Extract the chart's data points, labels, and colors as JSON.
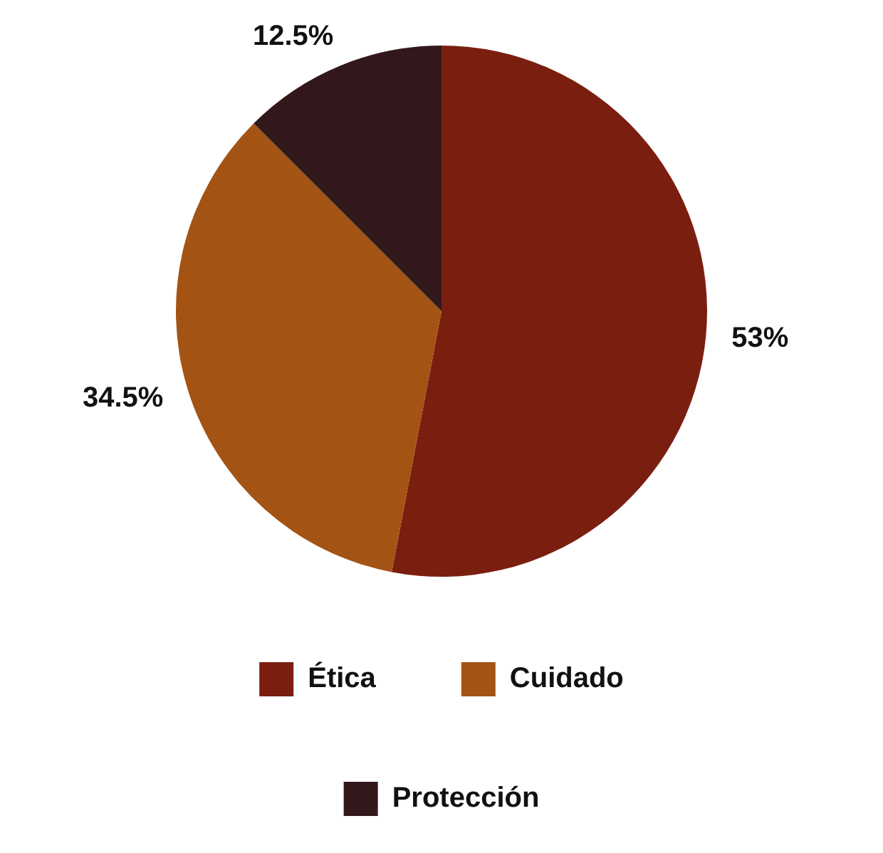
{
  "chart_data": {
    "type": "pie",
    "categories": [
      "Ética",
      "Cuidado",
      "Protección"
    ],
    "values": [
      53,
      34.5,
      12.5
    ],
    "colors": [
      "#7a1f10",
      "#a35314",
      "#33181b"
    ],
    "value_labels": [
      "53%",
      "34.5%",
      "12.5%"
    ],
    "legend": "bottom"
  }
}
